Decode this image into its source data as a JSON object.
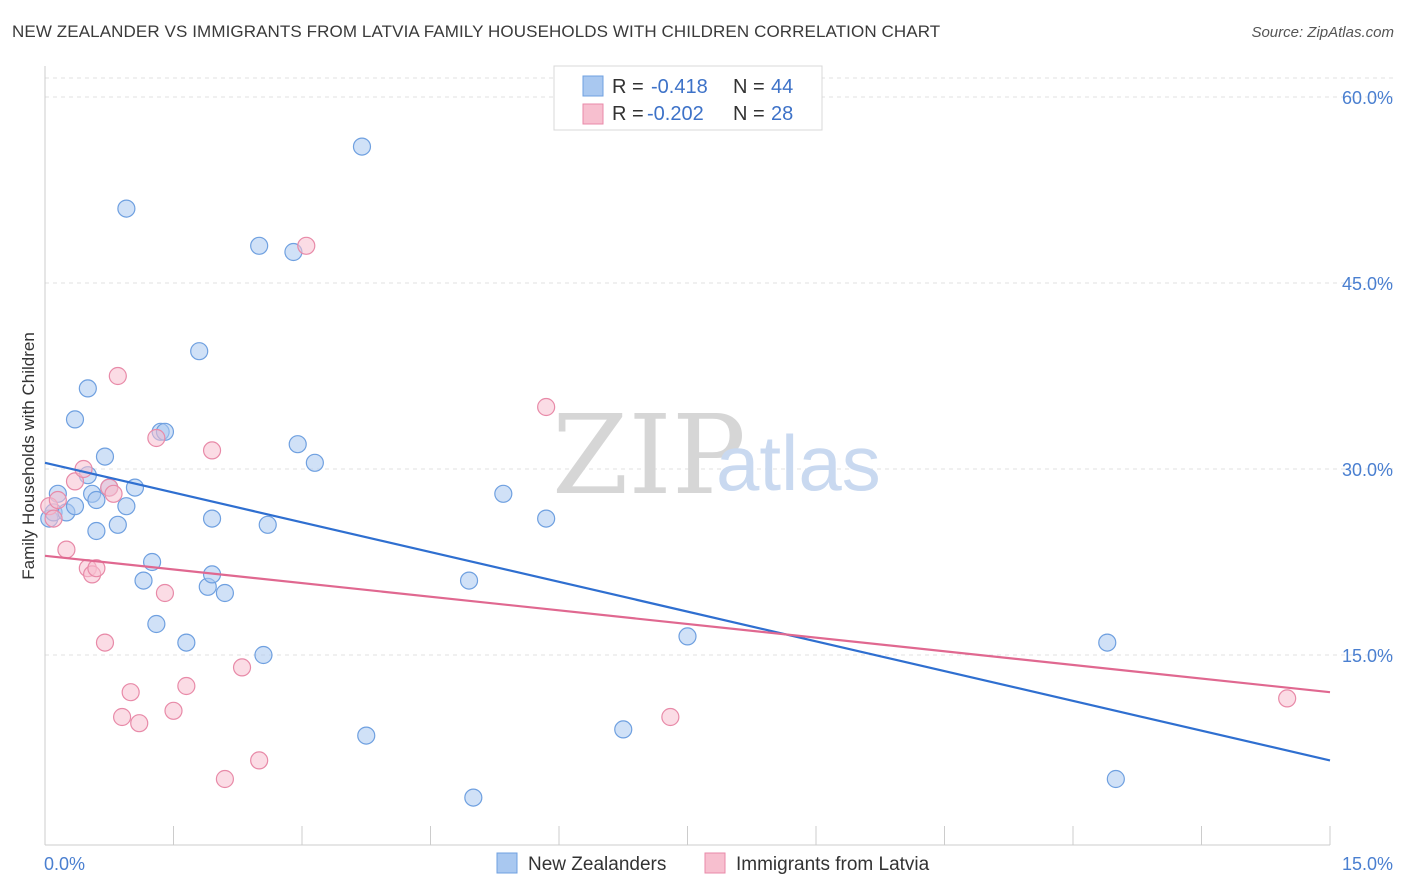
{
  "header": {
    "title": "NEW ZEALANDER VS IMMIGRANTS FROM LATVIA FAMILY HOUSEHOLDS WITH CHILDREN CORRELATION CHART",
    "source": "Source: ZipAtlas.com"
  },
  "watermark": {
    "zip": "ZIP",
    "atlas": "atlas"
  },
  "legend": {
    "rows": [
      {
        "r_label": "R =",
        "r_value": "-0.418",
        "n_label": "N =",
        "n_value": "44",
        "color": "#a9c8f0",
        "stroke": "#6fa0e0"
      },
      {
        "r_label": "R =",
        "r_value": "-0.202",
        "n_label": "N =",
        "n_value": "28",
        "color": "#f7bfcf",
        "stroke": "#e88aa8"
      }
    ]
  },
  "bottom_legend": {
    "series1": "New Zealanders",
    "series2": "Immigrants from Latvia"
  },
  "chart_data": {
    "type": "scatter",
    "title": "NEW ZEALANDER VS IMMIGRANTS FROM LATVIA FAMILY HOUSEHOLDS WITH CHILDREN CORRELATION CHART",
    "xlabel": "",
    "ylabel": "Family Households with Children",
    "xlim": [
      0,
      15
    ],
    "ylim": [
      0,
      62
    ],
    "x_tick_labels": [
      "0.0%",
      "15.0%"
    ],
    "y_ticks": [
      15,
      30,
      45,
      60
    ],
    "y_tick_labels": [
      "15.0%",
      "30.0%",
      "45.0%",
      "60.0%"
    ],
    "series": [
      {
        "name": "New Zealanders",
        "color": "#a9c8f0",
        "stroke": "#6fa0e0",
        "line_color": "#2f6fd0",
        "trend": {
          "x": [
            0,
            15
          ],
          "y": [
            30.5,
            6.5
          ]
        },
        "points": [
          [
            0.05,
            26.0
          ],
          [
            0.1,
            26.5
          ],
          [
            0.15,
            28.0
          ],
          [
            0.25,
            26.5
          ],
          [
            0.35,
            27.0
          ],
          [
            0.35,
            34.0
          ],
          [
            0.5,
            29.5
          ],
          [
            0.5,
            36.5
          ],
          [
            0.55,
            28.0
          ],
          [
            0.6,
            25.0
          ],
          [
            0.6,
            27.5
          ],
          [
            0.7,
            31.0
          ],
          [
            0.75,
            28.5
          ],
          [
            0.85,
            25.5
          ],
          [
            0.95,
            27.0
          ],
          [
            0.95,
            51.0
          ],
          [
            1.05,
            28.5
          ],
          [
            1.15,
            21.0
          ],
          [
            1.25,
            22.5
          ],
          [
            1.3,
            17.5
          ],
          [
            1.35,
            33.0
          ],
          [
            1.4,
            33.0
          ],
          [
            1.65,
            16.0
          ],
          [
            1.8,
            39.5
          ],
          [
            1.9,
            20.5
          ],
          [
            1.95,
            21.5
          ],
          [
            1.95,
            26.0
          ],
          [
            2.1,
            20.0
          ],
          [
            2.5,
            48.0
          ],
          [
            2.55,
            15.0
          ],
          [
            2.6,
            25.5
          ],
          [
            2.9,
            47.5
          ],
          [
            2.95,
            32.0
          ],
          [
            3.15,
            30.5
          ],
          [
            3.7,
            56.0
          ],
          [
            3.75,
            8.5
          ],
          [
            4.95,
            21.0
          ],
          [
            5.0,
            3.5
          ],
          [
            5.35,
            28.0
          ],
          [
            5.85,
            26.0
          ],
          [
            6.75,
            9.0
          ],
          [
            7.5,
            16.5
          ],
          [
            12.4,
            16.0
          ],
          [
            12.5,
            5.0
          ]
        ]
      },
      {
        "name": "Immigrants from Latvia",
        "color": "#f7bfcf",
        "stroke": "#e88aa8",
        "line_color": "#e06890",
        "trend": {
          "x": [
            0,
            15
          ],
          "y": [
            23.0,
            12.0
          ]
        },
        "points": [
          [
            0.05,
            27.0
          ],
          [
            0.15,
            27.5
          ],
          [
            0.25,
            23.5
          ],
          [
            0.35,
            29.0
          ],
          [
            0.45,
            30.0
          ],
          [
            0.5,
            22.0
          ],
          [
            0.55,
            21.5
          ],
          [
            0.6,
            22.0
          ],
          [
            0.7,
            16.0
          ],
          [
            0.75,
            28.5
          ],
          [
            0.85,
            37.5
          ],
          [
            0.9,
            10.0
          ],
          [
            1.0,
            12.0
          ],
          [
            1.1,
            9.5
          ],
          [
            1.3,
            32.5
          ],
          [
            1.4,
            20.0
          ],
          [
            1.5,
            10.5
          ],
          [
            1.65,
            12.5
          ],
          [
            1.95,
            31.5
          ],
          [
            2.1,
            5.0
          ],
          [
            2.3,
            14.0
          ],
          [
            2.5,
            6.5
          ],
          [
            3.05,
            48.0
          ],
          [
            5.85,
            35.0
          ],
          [
            7.3,
            10.0
          ],
          [
            14.5,
            11.5
          ],
          [
            0.1,
            26.0
          ],
          [
            0.8,
            28.0
          ]
        ]
      }
    ]
  }
}
